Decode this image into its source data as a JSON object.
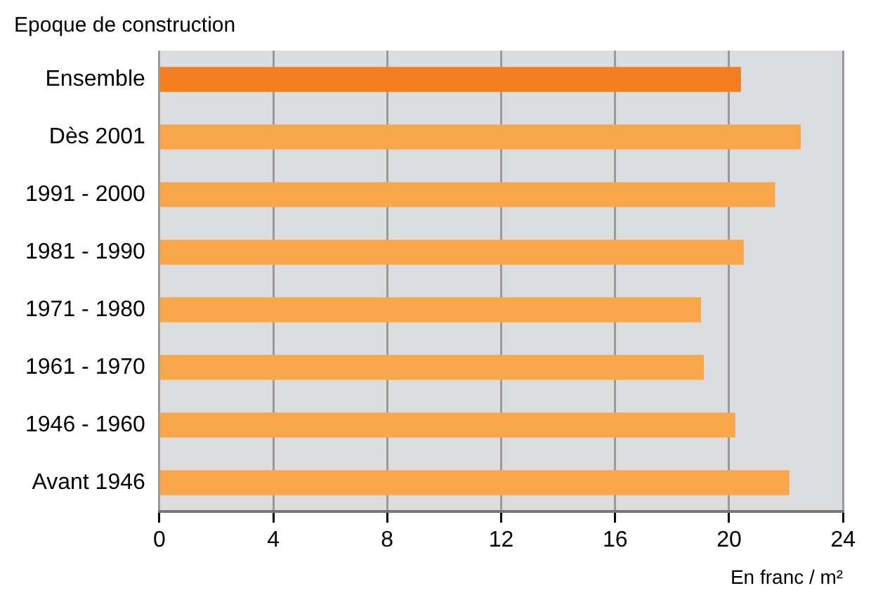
{
  "chart_data": {
    "type": "bar",
    "orientation": "horizontal",
    "ylabel": "Epoque de construction",
    "xlabel": "En franc / m²",
    "categories": [
      "Ensemble",
      "Dès 2001",
      "1991 - 2000",
      "1981 - 1990",
      "1971 - 1980",
      "1961 - 1970",
      "1946 - 1960",
      "Avant 1946"
    ],
    "values": [
      20.4,
      22.5,
      21.6,
      20.5,
      19.0,
      19.1,
      20.2,
      22.1
    ],
    "colors": [
      "#f57e20",
      "#f9a74b",
      "#f9a74b",
      "#f9a74b",
      "#f9a74b",
      "#f9a74b",
      "#f9a74b",
      "#f9a74b"
    ],
    "xlim": [
      0,
      24
    ],
    "xticks": [
      0,
      4,
      8,
      12,
      16,
      20,
      24
    ],
    "grid": "x",
    "legend": false
  }
}
